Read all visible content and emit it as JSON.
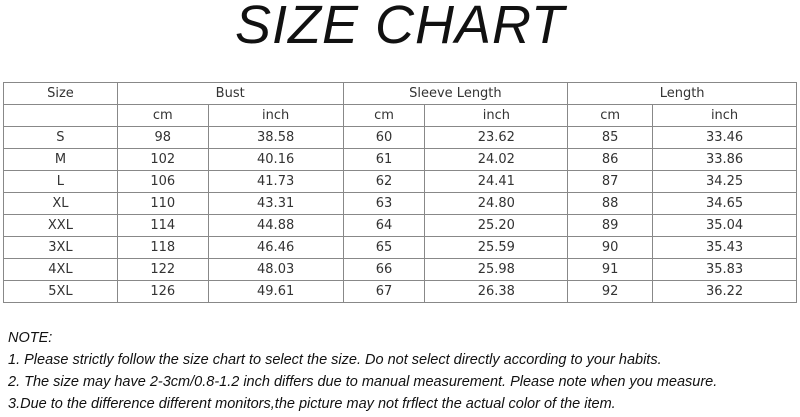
{
  "title": "SIZE CHART",
  "table": {
    "header": {
      "size": "Size",
      "bust": "Bust",
      "sleeve": "Sleeve Length",
      "length": "Length"
    },
    "units": [
      "cm",
      "inch",
      "cm",
      "inch",
      "cm",
      "inch"
    ],
    "rows": [
      [
        "S",
        "98",
        "38.58",
        "60",
        "23.62",
        "85",
        "33.46"
      ],
      [
        "M",
        "102",
        "40.16",
        "61",
        "24.02",
        "86",
        "33.86"
      ],
      [
        "L",
        "106",
        "41.73",
        "62",
        "24.41",
        "87",
        "34.25"
      ],
      [
        "XL",
        "110",
        "43.31",
        "63",
        "24.80",
        "88",
        "34.65"
      ],
      [
        "XXL",
        "114",
        "44.88",
        "64",
        "25.20",
        "89",
        "35.04"
      ],
      [
        "3XL",
        "118",
        "46.46",
        "65",
        "25.59",
        "90",
        "35.43"
      ],
      [
        "4XL",
        "122",
        "48.03",
        "66",
        "25.98",
        "91",
        "35.83"
      ],
      [
        "5XL",
        "126",
        "49.61",
        "67",
        "26.38",
        "92",
        "36.22"
      ]
    ]
  },
  "notes": [
    "NOTE:",
    "1. Please strictly follow the size chart to select the size. Do not select directly according to your habits.",
    "2. The size may have 2-3cm/0.8-1.2 inch differs due to manual measurement. Please note when you measure.",
    "3.Due to the difference different monitors,the picture may not frflect the actual color of the item."
  ]
}
